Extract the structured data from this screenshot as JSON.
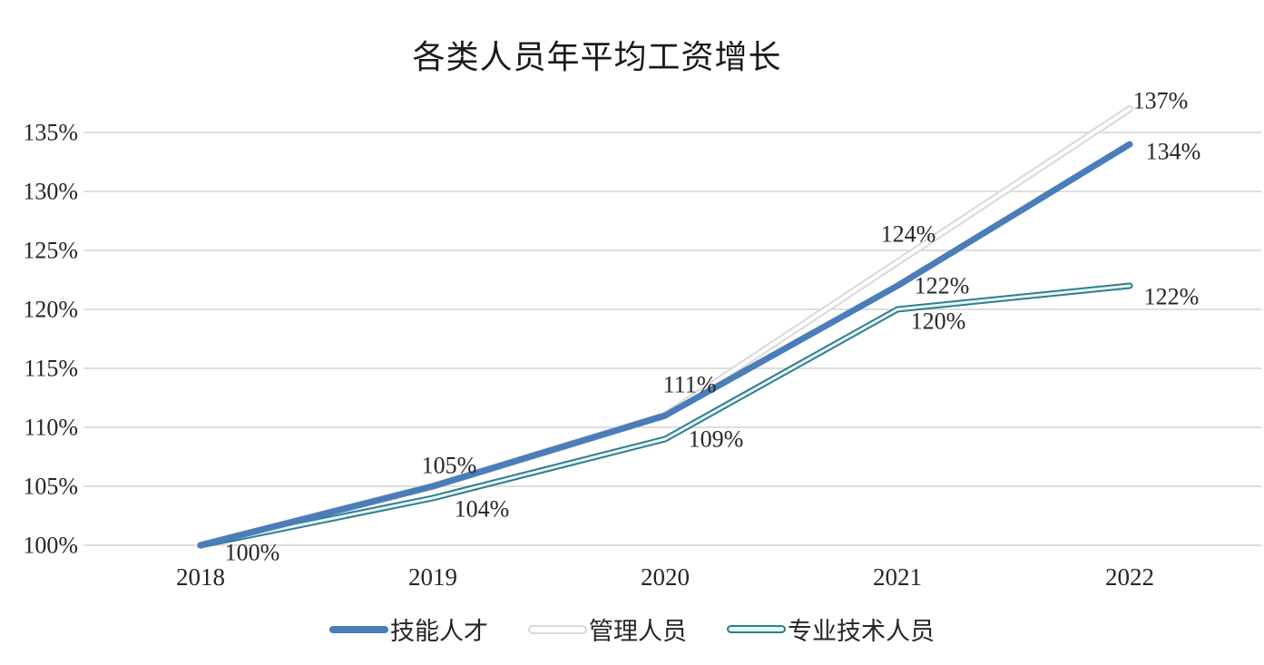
{
  "chart": {
    "title": "各类人员年平均工资增长",
    "chart_data": {
      "type": "line",
      "categories": [
        "2018",
        "2019",
        "2020",
        "2021",
        "2022"
      ],
      "y_ticks": [
        "100%",
        "105%",
        "110%",
        "115%",
        "120%",
        "125%",
        "130%",
        "135%"
      ],
      "y_tick_values": [
        100,
        105,
        110,
        115,
        120,
        125,
        130,
        135
      ],
      "ylim": [
        100,
        137.5
      ],
      "grid": true,
      "legend_position": "bottom",
      "xlabel": "",
      "ylabel": "",
      "series": [
        {
          "id": "skilled-talent",
          "name": "技能人才",
          "values": [
            100,
            105,
            111,
            122,
            134
          ],
          "point_labels": [
            "100%",
            "105%",
            "111%",
            "122%",
            "134%"
          ],
          "style": "solid",
          "color": "#4a7db9"
        },
        {
          "id": "management",
          "name": "管理人员",
          "values": [
            100,
            105,
            111,
            124,
            137
          ],
          "point_labels": [
            null,
            null,
            null,
            "124%",
            "137%"
          ],
          "style": "outlined",
          "color": "#d9d9d9",
          "inner_color": "#ffffff"
        },
        {
          "id": "professional-technical",
          "name": "专业技术人员",
          "values": [
            100,
            104,
            109,
            120,
            122
          ],
          "point_labels": [
            null,
            "104%",
            "109%",
            "120%",
            "122%"
          ],
          "style": "outlined",
          "color": "#2e7e91",
          "inner_color": "#e9f4f6"
        }
      ]
    }
  },
  "colors": {
    "grid": "#d9d9d9",
    "text": "#262626",
    "background": "#ffffff"
  }
}
